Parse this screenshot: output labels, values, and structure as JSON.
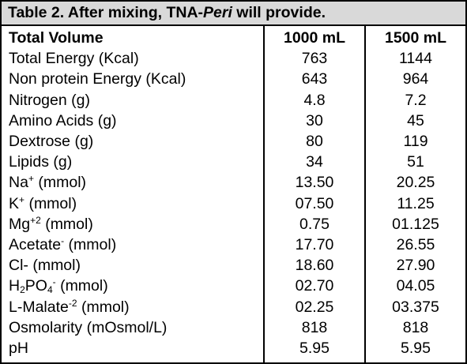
{
  "title": {
    "prefix": "Table 2. After mixing, TNA-",
    "italic": "Peri",
    "suffix": " will provide."
  },
  "table": {
    "header": {
      "label": "Total Volume",
      "col1": "1000 mL",
      "col2": "1500 mL"
    },
    "rows": [
      {
        "label": "Total Energy (Kcal)",
        "v1": "763",
        "v2": "1144"
      },
      {
        "label": "Non protein Energy (Kcal)",
        "v1": "643",
        "v2": "964"
      },
      {
        "label": "Nitrogen (g)",
        "v1": "4.8",
        "v2": "7.2"
      },
      {
        "label": "Amino Acids (g)",
        "v1": "30",
        "v2": "45"
      },
      {
        "label": "Dextrose (g)",
        "v1": "80",
        "v2": "119"
      },
      {
        "label": "Lipids (g)",
        "v1": "34",
        "v2": "51"
      },
      {
        "label_main": "Na",
        "label_sup": "+",
        "label_rest": " (mmol)",
        "v1": "13.50",
        "v2": "20.25"
      },
      {
        "label_main": "K",
        "label_sup": "+",
        "label_rest": " (mmol)",
        "v1": "07.50",
        "v2": "11.25"
      },
      {
        "label_main": "Mg",
        "label_sup": "+2",
        "label_rest": " (mmol)",
        "v1": "0.75",
        "v2": "01.125"
      },
      {
        "label_main": "Acetate",
        "label_sup": "-",
        "label_rest": " (mmol)",
        "v1": "17.70",
        "v2": "26.55"
      },
      {
        "label": "Cl- (mmol)",
        "v1": "18.60",
        "v2": "27.90"
      },
      {
        "label_a": "H",
        "label_sub": "2",
        "label_b": "PO",
        "label_sub2": "4",
        "label_sup": "-",
        "label_rest": " (mmol)",
        "v1": "02.70",
        "v2": "04.05"
      },
      {
        "label_main": "L-Malate",
        "label_sup": "-2",
        "label_rest": " (mmol)",
        "v1": "02.25",
        "v2": "03.375"
      },
      {
        "label": "Osmolarity (mOsmol/L)",
        "v1": "818",
        "v2": "818"
      },
      {
        "label": "pH",
        "v1": "5.95",
        "v2": "5.95"
      }
    ]
  }
}
